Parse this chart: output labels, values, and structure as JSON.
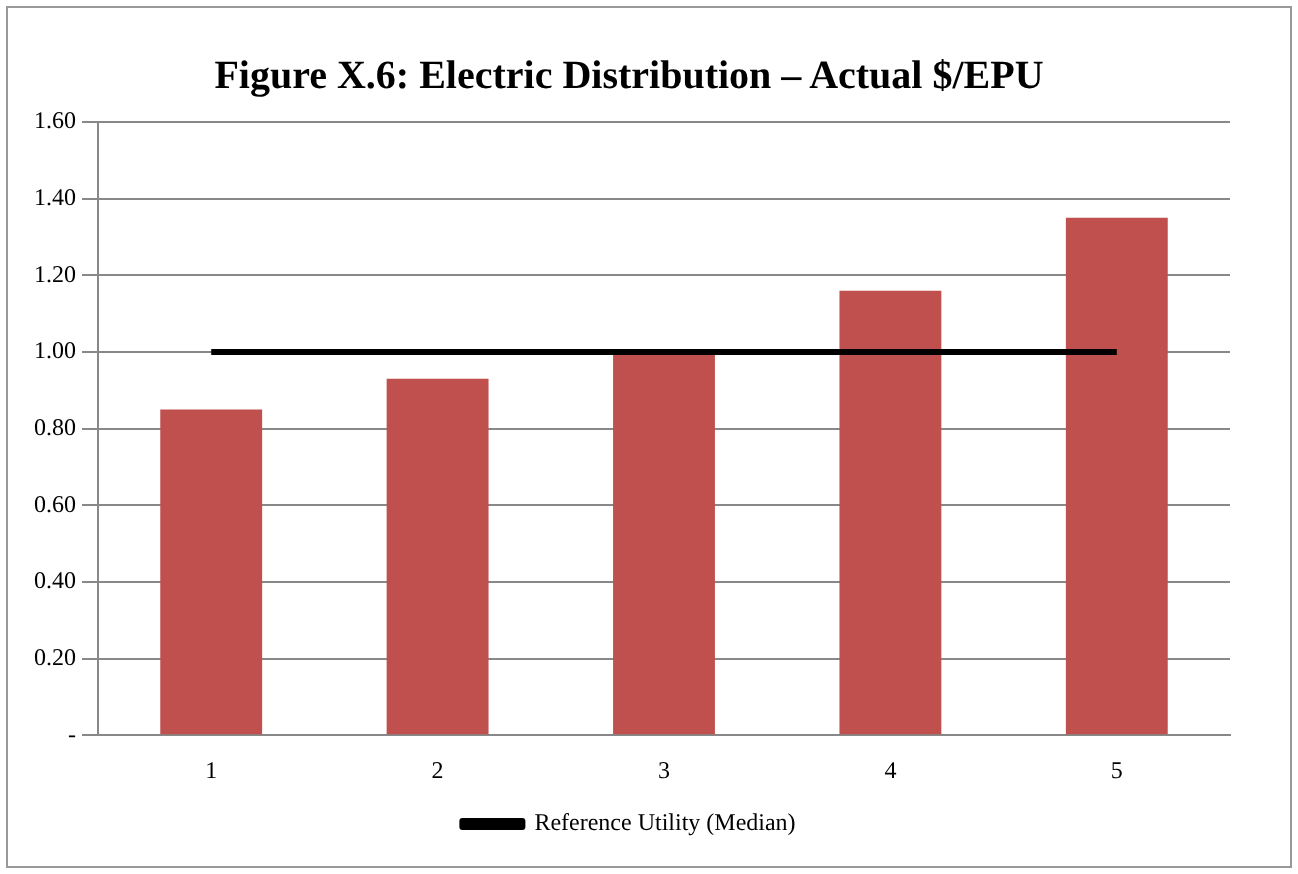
{
  "chart_data": {
    "type": "bar",
    "title": "Figure X.6: Electric Distribution – Actual $/EPU",
    "categories": [
      "1",
      "2",
      "3",
      "4",
      "5"
    ],
    "series": [
      {
        "color": "#c0504d",
        "values": [
          0.85,
          0.93,
          1.0,
          1.16,
          1.35
        ]
      },
      {
        "type": "line",
        "name": "Reference Utility (Median)",
        "color": "#000000",
        "values": [
          1,
          1,
          1,
          1,
          1
        ]
      }
    ],
    "ylim": [
      0,
      1.6
    ],
    "yticks": [
      {
        "value": 0,
        "label": "-"
      },
      {
        "value": 0.2,
        "label": "0.20"
      },
      {
        "value": 0.4,
        "label": "0.40"
      },
      {
        "value": 0.6,
        "label": "0.60"
      },
      {
        "value": 0.8,
        "label": "0.80"
      },
      {
        "value": 1.0,
        "label": "1.00"
      },
      {
        "value": 1.2,
        "label": "1.20"
      },
      {
        "value": 1.4,
        "label": "1.40"
      },
      {
        "value": 1.6,
        "label": "1.60"
      }
    ],
    "grid": "y",
    "legend": "bottom",
    "marker": "none",
    "line_style": "solid"
  }
}
